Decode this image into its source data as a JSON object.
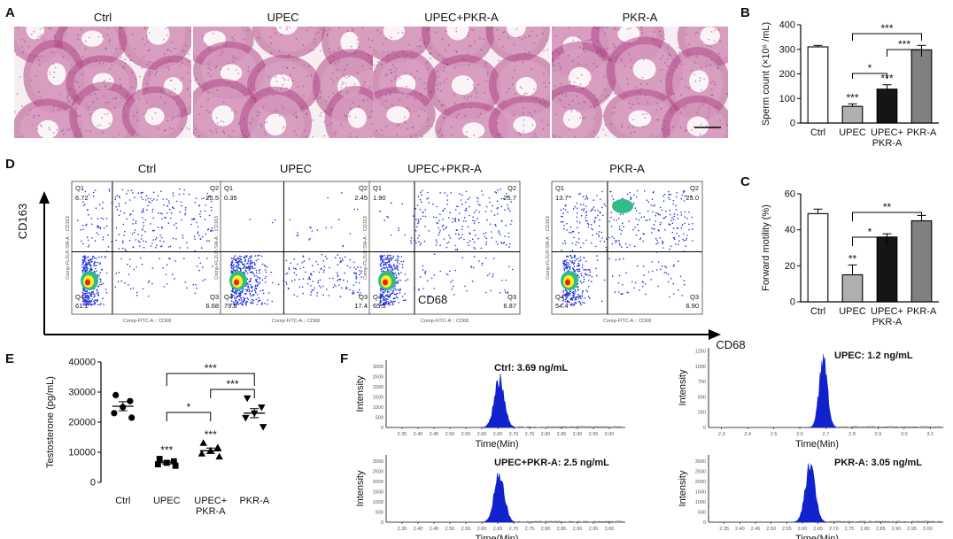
{
  "panel_labels": [
    "A",
    "B",
    "C",
    "D",
    "E",
    "F"
  ],
  "histology": {
    "titles": [
      "Ctrl",
      "UPEC",
      "UPEC+PKR-A",
      "PKR-A"
    ],
    "colors": {
      "background": "#f1e4ea",
      "tubule_wall": "#b04a86",
      "lumen": "#fbf4f7",
      "interstitium": "#f7eef2"
    }
  },
  "groups": [
    "Ctrl",
    "UPEC",
    "UPEC+",
    "PKR-A"
  ],
  "group_line2": [
    "",
    "",
    "PKR-A",
    ""
  ],
  "bar_colors": [
    "#ffffff",
    "#b0b0b0",
    "#151515",
    "#808080"
  ],
  "flow": {
    "titles": [
      "Ctrl",
      "UPEC",
      "UPEC+PKR-A",
      "PKR-A"
    ],
    "y_axis": "CD163",
    "x_axis": "CD68",
    "inner_label": "CD68",
    "tiny_x": "Comp-FITC-A :: CD68",
    "tiny_y": "Comp-FL2LR-SM-A :: CD163",
    "quadrant_names": [
      "Q1",
      "Q2",
      "Q3",
      "Q4"
    ],
    "quadrants": [
      {
        "Q1": "6.72",
        "Q2": "25.5",
        "Q3": "6.68",
        "Q4": "61.1"
      },
      {
        "Q1": "0.35",
        "Q2": "2.45",
        "Q3": "17.4",
        "Q4": "79.8"
      },
      {
        "Q1": "1.90",
        "Q2": "25.7",
        "Q3": "6.87",
        "Q4": "65.5"
      },
      {
        "Q1": "13.7",
        "Q2": "25.0",
        "Q3": "6.90",
        "Q4": "54.4"
      }
    ],
    "colors": {
      "dots": "#2233dd",
      "mid": "#33bb88",
      "hot": "#ffee22",
      "core": "#ee2211"
    }
  },
  "chart_data": [
    {
      "panel": "B",
      "type": "bar",
      "categories": [
        "Ctrl",
        "UPEC",
        "UPEC+PKR-A",
        "PKR-A"
      ],
      "values": [
        310,
        68,
        138,
        298
      ],
      "errors": [
        6,
        10,
        18,
        18
      ],
      "ylabel": "Sperm count (×10⁶ /mL)",
      "ylim": [
        0,
        400
      ],
      "yticks": [
        "0",
        "100",
        "200",
        "300",
        "400"
      ],
      "bar_stars": [
        "",
        "***",
        "***",
        ""
      ],
      "brackets": [
        {
          "from": 1,
          "to": 3,
          "label": "***"
        },
        {
          "from": 2,
          "to": 3,
          "label": "***"
        },
        {
          "from": 1,
          "to": 2,
          "label": "*"
        }
      ]
    },
    {
      "panel": "C",
      "type": "bar",
      "categories": [
        "Ctrl",
        "UPEC",
        "UPEC+PKR-A",
        "PKR-A"
      ],
      "values": [
        49,
        15,
        36,
        45
      ],
      "errors": [
        2.5,
        5.5,
        1.8,
        3
      ],
      "ylabel": "Forward motility (%)",
      "ylim": [
        0,
        60
      ],
      "yticks": [
        "0",
        "20",
        "40",
        "60"
      ],
      "bar_stars": [
        "",
        "**",
        "",
        ""
      ],
      "brackets": [
        {
          "from": 1,
          "to": 3,
          "label": "**"
        },
        {
          "from": 1,
          "to": 2,
          "label": "*"
        }
      ]
    },
    {
      "panel": "E",
      "type": "scatter",
      "categories": [
        "Ctrl",
        "UPEC",
        "UPEC+PKR-A",
        "PKR-A"
      ],
      "points": [
        [
          29000,
          27000,
          25000,
          23000,
          21500
        ],
        [
          7800,
          7000,
          6500,
          6000,
          5500
        ],
        [
          13000,
          11500,
          10500,
          9500,
          8500
        ],
        [
          28000,
          25000,
          23000,
          21500,
          18500
        ]
      ],
      "means": [
        25300,
        6600,
        10500,
        23000
      ],
      "sems": [
        1500,
        500,
        900,
        1500
      ],
      "markers": [
        "circle",
        "square",
        "triangle-up",
        "triangle-down"
      ],
      "ylabel": "Testosterone (pg/mL)",
      "ylim": [
        0,
        40000
      ],
      "yticks": [
        "0",
        "10000",
        "20000",
        "30000",
        "40000"
      ],
      "point_stars": [
        "",
        "***",
        "***",
        ""
      ],
      "brackets": [
        {
          "from": 1,
          "to": 3,
          "label": "***"
        },
        {
          "from": 2,
          "to": 3,
          "label": "***"
        },
        {
          "from": 1,
          "to": 2,
          "label": "*"
        }
      ]
    },
    {
      "panel": "F",
      "type": "area",
      "ylabel": "Intensity",
      "xlabel": "Time(Min)",
      "subplots": [
        {
          "annotation": "Ctrl: 3.69 ng/mL",
          "xmin": 2.3,
          "xmax": 3.05,
          "xticks": [
            "2.35",
            "2.40",
            "2.45",
            "2.50",
            "2.55",
            "2.60",
            "2.65",
            "2.70",
            "2.75",
            "2.80",
            "2.85",
            "2.90",
            "2.95",
            "3.00"
          ],
          "yticks": [
            "0",
            "500",
            "1000",
            "1500",
            "2000",
            "2500",
            "3000"
          ],
          "ymax": 3300,
          "peak_center": 2.655,
          "peak_height": 2600
        },
        {
          "annotation": "UPEC: 1.2 ng/mL",
          "xmin": 2.25,
          "xmax": 3.15,
          "xticks": [
            "2.3",
            "2.4",
            "2.5",
            "2.6",
            "2.7",
            "2.8",
            "2.9",
            "3.0",
            "3.1"
          ],
          "yticks": [
            "0",
            "250",
            "500",
            "750",
            "1000",
            "1250"
          ],
          "ymax": 1300,
          "peak_center": 2.69,
          "peak_height": 1200
        },
        {
          "annotation": "UPEC+PKR-A: 2.5 ng/mL",
          "xmin": 2.3,
          "xmax": 3.05,
          "xticks": [
            "2.35",
            "2.40",
            "2.45",
            "2.50",
            "2.55",
            "2.60",
            "2.65",
            "2.70",
            "2.75",
            "2.80",
            "2.85",
            "2.90",
            "2.95",
            "3.00"
          ],
          "yticks": [
            "0",
            "500",
            "1000",
            "1500",
            "2000",
            "2500",
            "3000"
          ],
          "ymax": 3300,
          "peak_center": 2.655,
          "peak_height": 2600
        },
        {
          "annotation": "PKR-A: 3.05 ng/mL",
          "xmin": 2.3,
          "xmax": 3.05,
          "xticks": [
            "2.35",
            "2.40",
            "2.45",
            "2.50",
            "2.55",
            "2.60",
            "2.65",
            "2.70",
            "2.75",
            "2.80",
            "2.85",
            "2.90",
            "2.95",
            "3.00"
          ],
          "yticks": [
            "0",
            "500",
            "1000",
            "1500",
            "2000",
            "2500",
            "3000"
          ],
          "ymax": 3300,
          "peak_center": 2.625,
          "peak_height": 3050
        }
      ],
      "fill_color": "#1122cc"
    }
  ]
}
